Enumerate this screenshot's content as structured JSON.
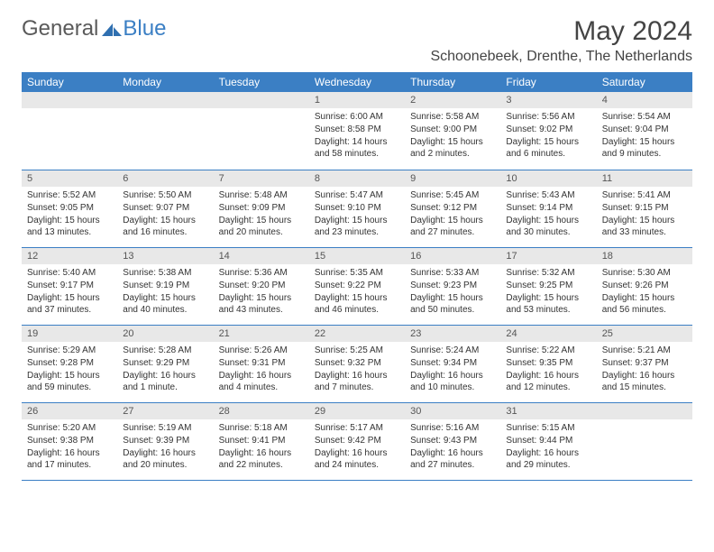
{
  "logo": {
    "text1": "General",
    "text2": "Blue"
  },
  "title": "May 2024",
  "location": "Schoonebeek, Drenthe, The Netherlands",
  "colors": {
    "header_bg": "#3b7fc4",
    "header_fg": "#ffffff",
    "daynum_bg": "#e8e8e8",
    "rule": "#3b7fc4",
    "text": "#333333"
  },
  "weekdays": [
    "Sunday",
    "Monday",
    "Tuesday",
    "Wednesday",
    "Thursday",
    "Friday",
    "Saturday"
  ],
  "weeks": [
    [
      null,
      null,
      null,
      {
        "n": "1",
        "sunrise": "6:00 AM",
        "sunset": "8:58 PM",
        "daylight": "14 hours and 58 minutes."
      },
      {
        "n": "2",
        "sunrise": "5:58 AM",
        "sunset": "9:00 PM",
        "daylight": "15 hours and 2 minutes."
      },
      {
        "n": "3",
        "sunrise": "5:56 AM",
        "sunset": "9:02 PM",
        "daylight": "15 hours and 6 minutes."
      },
      {
        "n": "4",
        "sunrise": "5:54 AM",
        "sunset": "9:04 PM",
        "daylight": "15 hours and 9 minutes."
      }
    ],
    [
      {
        "n": "5",
        "sunrise": "5:52 AM",
        "sunset": "9:05 PM",
        "daylight": "15 hours and 13 minutes."
      },
      {
        "n": "6",
        "sunrise": "5:50 AM",
        "sunset": "9:07 PM",
        "daylight": "15 hours and 16 minutes."
      },
      {
        "n": "7",
        "sunrise": "5:48 AM",
        "sunset": "9:09 PM",
        "daylight": "15 hours and 20 minutes."
      },
      {
        "n": "8",
        "sunrise": "5:47 AM",
        "sunset": "9:10 PM",
        "daylight": "15 hours and 23 minutes."
      },
      {
        "n": "9",
        "sunrise": "5:45 AM",
        "sunset": "9:12 PM",
        "daylight": "15 hours and 27 minutes."
      },
      {
        "n": "10",
        "sunrise": "5:43 AM",
        "sunset": "9:14 PM",
        "daylight": "15 hours and 30 minutes."
      },
      {
        "n": "11",
        "sunrise": "5:41 AM",
        "sunset": "9:15 PM",
        "daylight": "15 hours and 33 minutes."
      }
    ],
    [
      {
        "n": "12",
        "sunrise": "5:40 AM",
        "sunset": "9:17 PM",
        "daylight": "15 hours and 37 minutes."
      },
      {
        "n": "13",
        "sunrise": "5:38 AM",
        "sunset": "9:19 PM",
        "daylight": "15 hours and 40 minutes."
      },
      {
        "n": "14",
        "sunrise": "5:36 AM",
        "sunset": "9:20 PM",
        "daylight": "15 hours and 43 minutes."
      },
      {
        "n": "15",
        "sunrise": "5:35 AM",
        "sunset": "9:22 PM",
        "daylight": "15 hours and 46 minutes."
      },
      {
        "n": "16",
        "sunrise": "5:33 AM",
        "sunset": "9:23 PM",
        "daylight": "15 hours and 50 minutes."
      },
      {
        "n": "17",
        "sunrise": "5:32 AM",
        "sunset": "9:25 PM",
        "daylight": "15 hours and 53 minutes."
      },
      {
        "n": "18",
        "sunrise": "5:30 AM",
        "sunset": "9:26 PM",
        "daylight": "15 hours and 56 minutes."
      }
    ],
    [
      {
        "n": "19",
        "sunrise": "5:29 AM",
        "sunset": "9:28 PM",
        "daylight": "15 hours and 59 minutes."
      },
      {
        "n": "20",
        "sunrise": "5:28 AM",
        "sunset": "9:29 PM",
        "daylight": "16 hours and 1 minute."
      },
      {
        "n": "21",
        "sunrise": "5:26 AM",
        "sunset": "9:31 PM",
        "daylight": "16 hours and 4 minutes."
      },
      {
        "n": "22",
        "sunrise": "5:25 AM",
        "sunset": "9:32 PM",
        "daylight": "16 hours and 7 minutes."
      },
      {
        "n": "23",
        "sunrise": "5:24 AM",
        "sunset": "9:34 PM",
        "daylight": "16 hours and 10 minutes."
      },
      {
        "n": "24",
        "sunrise": "5:22 AM",
        "sunset": "9:35 PM",
        "daylight": "16 hours and 12 minutes."
      },
      {
        "n": "25",
        "sunrise": "5:21 AM",
        "sunset": "9:37 PM",
        "daylight": "16 hours and 15 minutes."
      }
    ],
    [
      {
        "n": "26",
        "sunrise": "5:20 AM",
        "sunset": "9:38 PM",
        "daylight": "16 hours and 17 minutes."
      },
      {
        "n": "27",
        "sunrise": "5:19 AM",
        "sunset": "9:39 PM",
        "daylight": "16 hours and 20 minutes."
      },
      {
        "n": "28",
        "sunrise": "5:18 AM",
        "sunset": "9:41 PM",
        "daylight": "16 hours and 22 minutes."
      },
      {
        "n": "29",
        "sunrise": "5:17 AM",
        "sunset": "9:42 PM",
        "daylight": "16 hours and 24 minutes."
      },
      {
        "n": "30",
        "sunrise": "5:16 AM",
        "sunset": "9:43 PM",
        "daylight": "16 hours and 27 minutes."
      },
      {
        "n": "31",
        "sunrise": "5:15 AM",
        "sunset": "9:44 PM",
        "daylight": "16 hours and 29 minutes."
      },
      null
    ]
  ],
  "labels": {
    "sunrise": "Sunrise:",
    "sunset": "Sunset:",
    "daylight": "Daylight:"
  }
}
